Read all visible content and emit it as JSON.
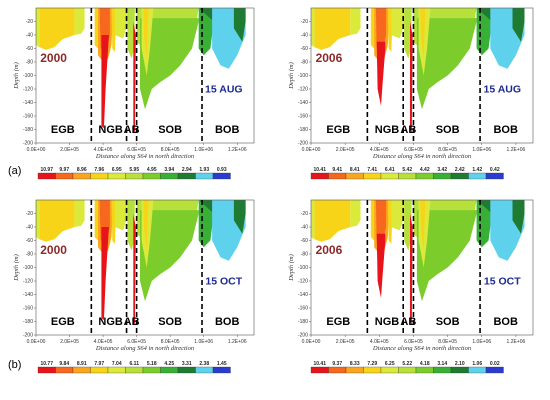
{
  "row_labels": [
    "(a)",
    "(b)"
  ],
  "chart_data": [
    {
      "type": "heatmap",
      "year": "2000",
      "date": "15 AUG",
      "xlabel": "Distance along S64 in north direction",
      "ylabel": "Depth (m)",
      "x_ticks": [
        "0.0E+00",
        "2.0E+05",
        "4.0E+05",
        "6.0E+05",
        "8.0E+05",
        "1.0E+06",
        "1.2E+06"
      ],
      "y_ticks": [
        "-20",
        "-40",
        "-60",
        "-80",
        "-100",
        "-120",
        "-140",
        "-160",
        "-180",
        "-200"
      ],
      "ylim": [
        -200,
        0
      ],
      "xlim": [
        0,
        1300000
      ],
      "regions": [
        "EGB",
        "NGB",
        "AB",
        "SOB",
        "BOB"
      ],
      "colorbar": [
        "10.97",
        "9.97",
        "8.96",
        "7.96",
        "6.95",
        "5.95",
        "4.95",
        "3.94",
        "2.94",
        "1.93",
        "0.93"
      ]
    },
    {
      "type": "heatmap",
      "year": "2006",
      "date": "15 AUG",
      "xlabel": "Distance along S64 in north direction",
      "ylabel": "Depth (m)",
      "x_ticks": [
        "0.0E+00",
        "2.0E+05",
        "4.0E+05",
        "6.0E+05",
        "8.0E+05",
        "1.0E+06",
        "1.2E+06"
      ],
      "y_ticks": [
        "-20",
        "-40",
        "-60",
        "-80",
        "-100",
        "-120",
        "-140",
        "-160",
        "-180",
        "-200"
      ],
      "ylim": [
        -200,
        0
      ],
      "xlim": [
        0,
        1300000
      ],
      "regions": [
        "EGB",
        "NGB",
        "AB",
        "SOB",
        "BOB"
      ],
      "colorbar": [
        "10.41",
        "9.41",
        "8.41",
        "7.41",
        "6.41",
        "5.42",
        "4.42",
        "3.42",
        "2.42",
        "1.42",
        "0.42"
      ]
    },
    {
      "type": "heatmap",
      "year": "2000",
      "date": "15 OCT",
      "xlabel": "Distance along S64 in north direction",
      "ylabel": "Depth (m)",
      "x_ticks": [
        "0.0E+00",
        "2.0E+05",
        "4.0E+05",
        "6.0E+05",
        "8.0E+05",
        "1.0E+06",
        "1.2E+06"
      ],
      "y_ticks": [
        "-20",
        "-40",
        "-60",
        "-80",
        "-100",
        "-120",
        "-140",
        "-160",
        "-180",
        "-200"
      ],
      "ylim": [
        -200,
        0
      ],
      "xlim": [
        0,
        1300000
      ],
      "regions": [
        "EGB",
        "NGB",
        "AB",
        "SOB",
        "BOB"
      ],
      "colorbar": [
        "10.77",
        "9.84",
        "8.91",
        "7.97",
        "7.04",
        "6.11",
        "5.18",
        "4.25",
        "3.31",
        "2.38",
        "1.45"
      ]
    },
    {
      "type": "heatmap",
      "year": "2006",
      "date": "15 OCT",
      "xlabel": "Distance along S64 in north direction",
      "ylabel": "Depth (m)",
      "x_ticks": [
        "0.0E+00",
        "2.0E+05",
        "4.0E+05",
        "6.0E+05",
        "8.0E+05",
        "1.0E+06",
        "1.2E+06"
      ],
      "y_ticks": [
        "-20",
        "-40",
        "-60",
        "-80",
        "-100",
        "-120",
        "-140",
        "-160",
        "-180",
        "-200"
      ],
      "ylim": [
        -200,
        0
      ],
      "xlim": [
        0,
        1300000
      ],
      "regions": [
        "EGB",
        "NGB",
        "AB",
        "SOB",
        "BOB"
      ],
      "colorbar": [
        "10.41",
        "9.37",
        "8.33",
        "7.29",
        "6.25",
        "5.22",
        "4.18",
        "3.14",
        "2.10",
        "1.06",
        "0.02"
      ]
    }
  ],
  "colors": {
    "scale": [
      "#e8141a",
      "#f7671e",
      "#fba51f",
      "#f7d417",
      "#dbe93a",
      "#b7e03a",
      "#7ccd2c",
      "#38b035",
      "#1f7a32",
      "#5ed1ec",
      "#2b3bd0"
    ],
    "bg": "#ffffff"
  }
}
